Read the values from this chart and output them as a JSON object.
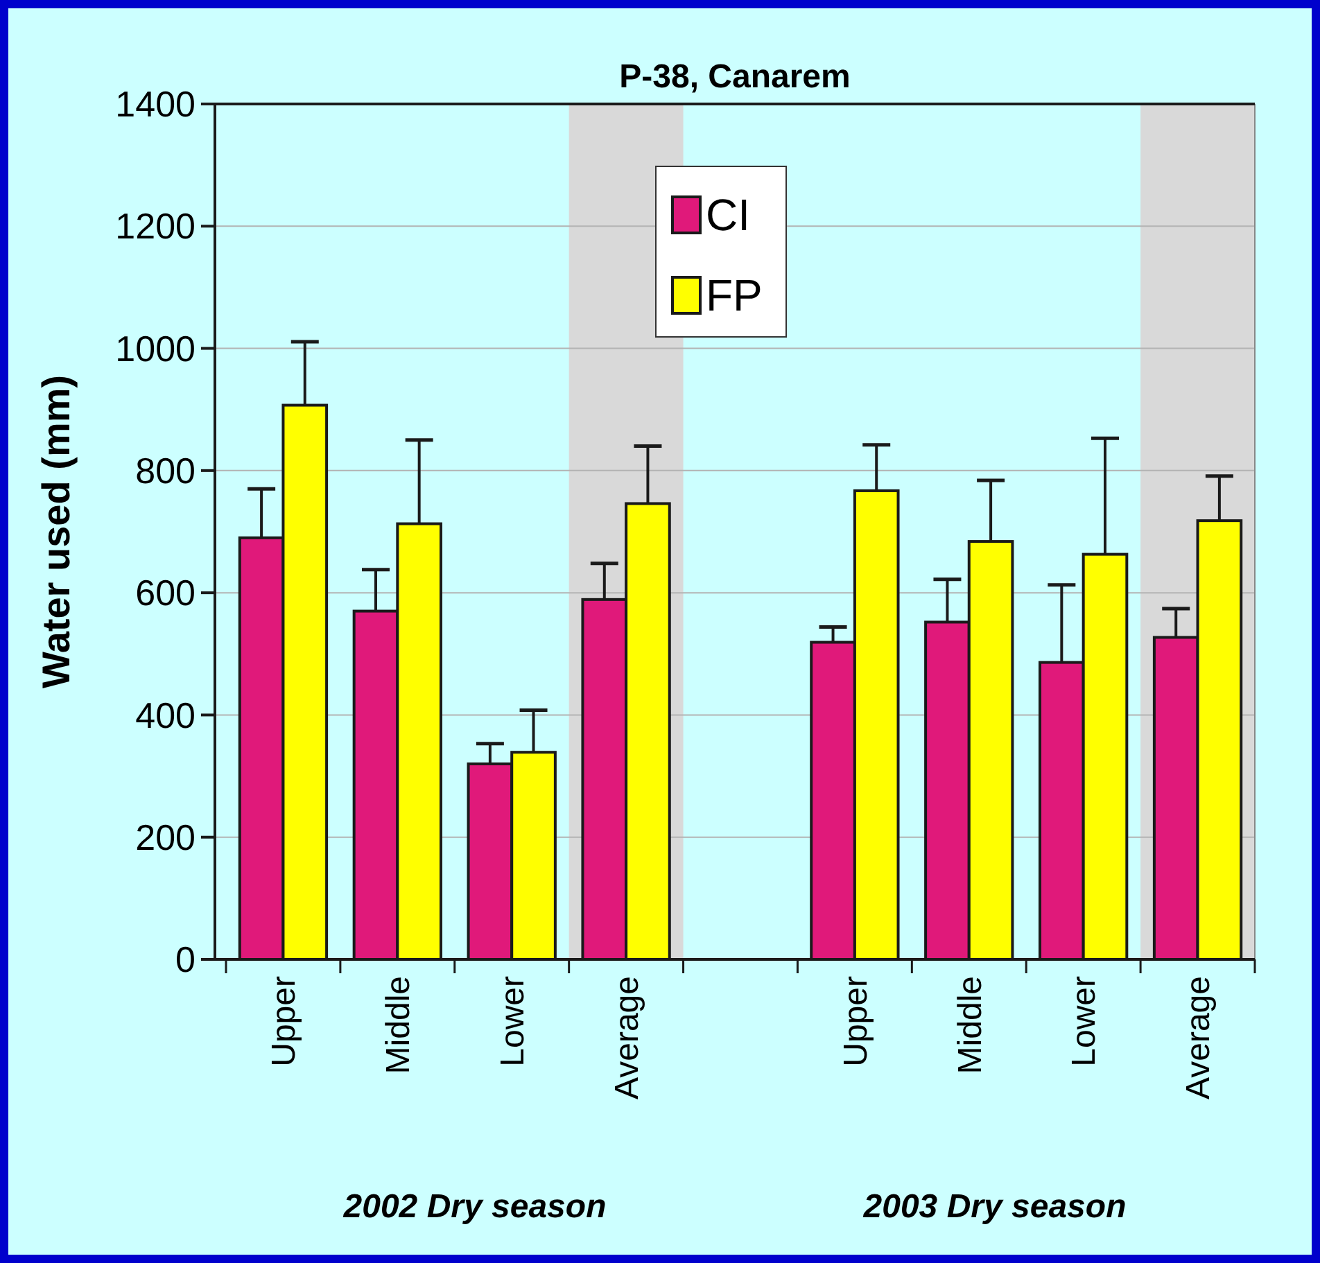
{
  "chart_data": {
    "type": "bar",
    "title": "P-38, Canarem",
    "ylabel": "Water used (mm)",
    "categories": [
      "Upper",
      "Middle",
      "Lower",
      "Average",
      null,
      "Upper",
      "Middle",
      "Lower",
      "Average"
    ],
    "series": [
      {
        "name": "CI",
        "color": "#e0197a",
        "values": [
          690,
          570,
          320,
          589,
          null,
          519,
          552,
          486,
          527
        ],
        "errors": [
          [
            690,
            770
          ],
          [
            570,
            638
          ],
          [
            320,
            353
          ],
          [
            589,
            648
          ],
          null,
          [
            519,
            544
          ],
          [
            552,
            622
          ],
          [
            486,
            613
          ],
          [
            527,
            574
          ]
        ]
      },
      {
        "name": "FP",
        "color": "#ffff00",
        "values": [
          907,
          713,
          339,
          746,
          null,
          767,
          684,
          663,
          718
        ],
        "errors": [
          [
            907,
            1011
          ],
          [
            713,
            850
          ],
          [
            339,
            408
          ],
          [
            746,
            840
          ],
          null,
          [
            767,
            842
          ],
          [
            684,
            784
          ],
          [
            663,
            853
          ],
          [
            718,
            791
          ]
        ]
      }
    ],
    "annotations": [
      "2002 Dry season",
      "2003 Dry season"
    ],
    "ylim": [
      0,
      1400
    ],
    "yticks": [
      0,
      200,
      400,
      600,
      800,
      1000,
      1200,
      1400
    ],
    "grid": "y",
    "legend": "top"
  }
}
